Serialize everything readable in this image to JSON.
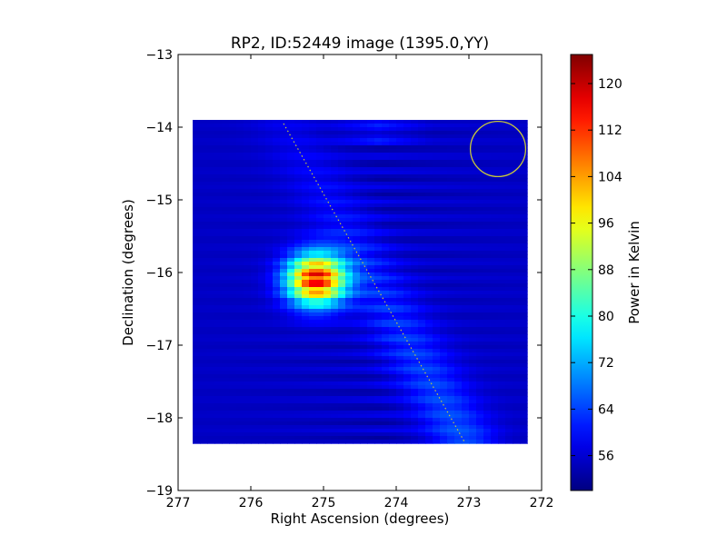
{
  "chart_data": [
    {
      "type": "heatmap",
      "title": "RP2, ID:52449 image (1395.0,YY)",
      "xlabel": "Right Ascension (degrees)",
      "ylabel": "Declination (degrees)",
      "xlim": [
        277,
        272
      ],
      "ylim": [
        -19,
        -13
      ],
      "xticks": [
        277,
        276,
        275,
        274,
        273,
        272
      ],
      "yticks": [
        -19,
        -18,
        -17,
        -16,
        -15,
        -14,
        -13
      ],
      "colormap": "jet",
      "image_extent": {
        "ra": [
          276.8,
          272.2
        ],
        "dec": [
          -18.35,
          -13.9
        ]
      },
      "sources": [
        {
          "ra": 275.1,
          "dec": -16.1,
          "peak_value": 124,
          "ra_width": 0.4,
          "dec_width": 0.35
        }
      ],
      "background_value": 55,
      "overlays": {
        "beam_circle": {
          "ra": 272.6,
          "dec": -14.3,
          "radius_deg": 0.38,
          "color": "#c8c83c"
        },
        "dotted_line": {
          "start": {
            "ra": 275.55,
            "dec": -13.95
          },
          "end": {
            "ra": 273.05,
            "dec": -18.35
          },
          "color": "#c8c83c"
        }
      }
    },
    {
      "type": "colorbar",
      "label": "Power in Kelvin",
      "range": [
        50,
        125
      ],
      "ticks": [
        56,
        64,
        72,
        80,
        88,
        96,
        104,
        112,
        120
      ],
      "colormap": "jet"
    }
  ]
}
